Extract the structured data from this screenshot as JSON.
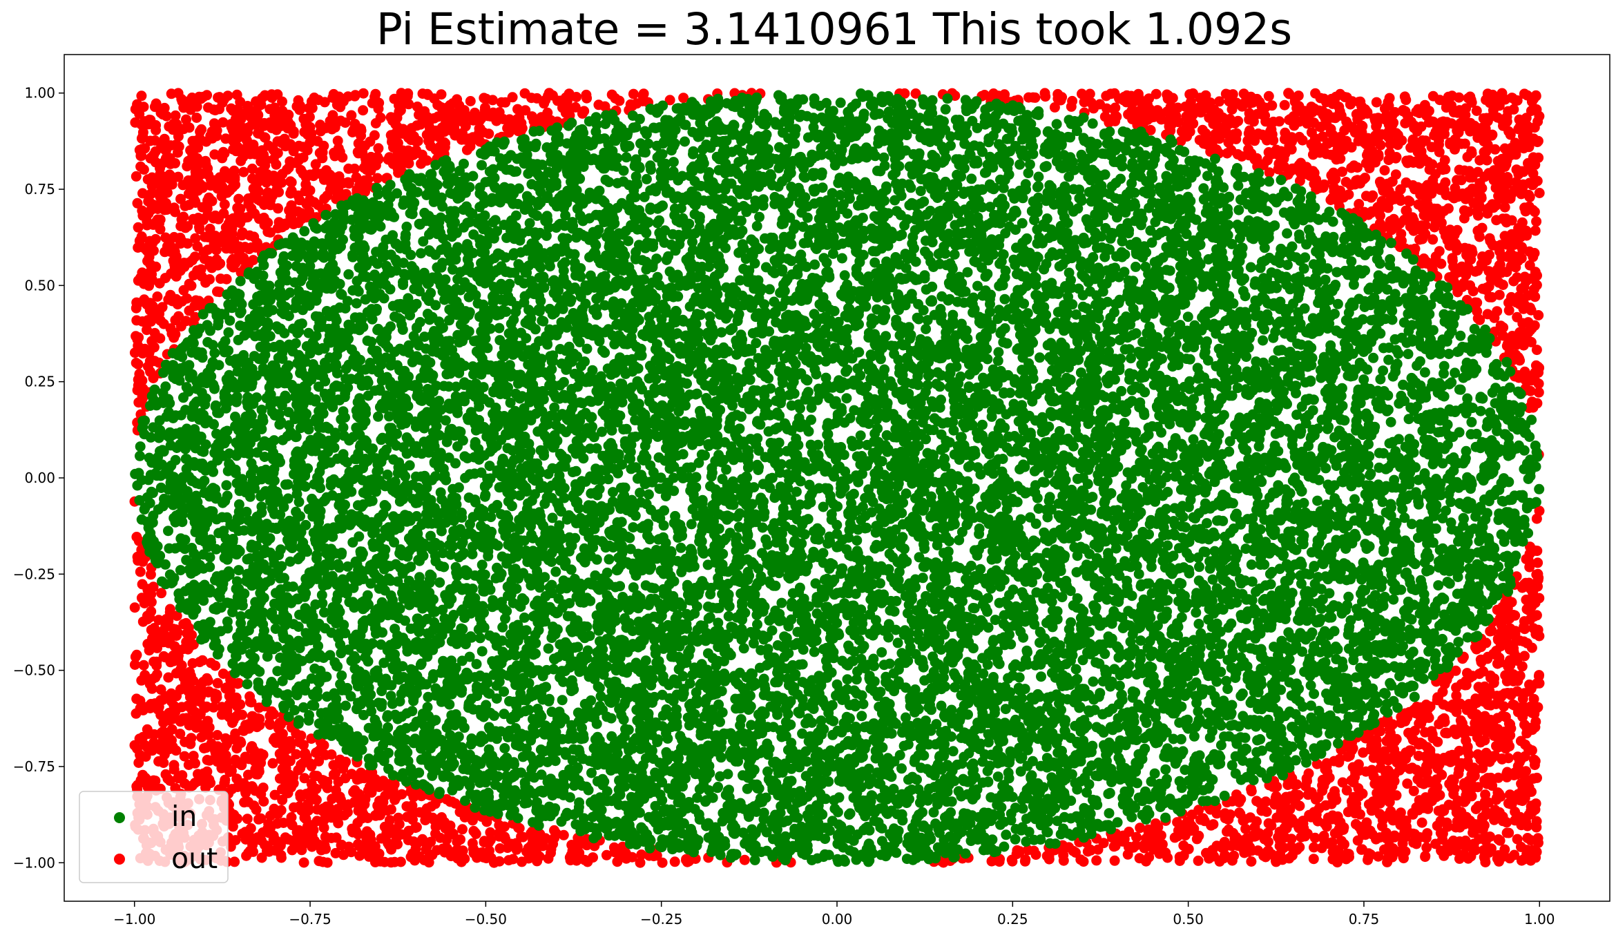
{
  "chart_data": {
    "type": "scatter",
    "title": "Pi Estimate = 3.1410961 This took 1.092s",
    "xlabel": "",
    "ylabel": "",
    "xlim": [
      -1.1,
      1.1
    ],
    "ylim": [
      -1.1,
      1.1
    ],
    "grid": false,
    "legend_placement": "lower-left",
    "x_ticks": [
      -1.0,
      -0.75,
      -0.5,
      -0.25,
      0.0,
      0.25,
      0.5,
      0.75,
      1.0
    ],
    "x_tick_labels": [
      "−1.00",
      "−0.75",
      "−0.50",
      "−0.25",
      "0.00",
      "0.25",
      "0.50",
      "0.75",
      "1.00"
    ],
    "y_ticks": [
      1.0,
      0.75,
      0.5,
      0.25,
      0.0,
      -0.25,
      -0.5,
      -0.75,
      -1.0
    ],
    "y_tick_labels": [
      "1.00",
      "0.75",
      "0.50",
      "0.25",
      "0.00",
      "−0.25",
      "−0.50",
      "−0.75",
      "−1.00"
    ],
    "series": [
      {
        "name": "in",
        "color": "#008000",
        "region": "inside unit circle: x^2 + y^2 <= 1"
      },
      {
        "name": "out",
        "color": "#ff0000",
        "region": "outside unit circle within square [-1,1] x [-1,1]"
      }
    ],
    "x_domain": [
      -1.0,
      1.0
    ],
    "y_domain": [
      -1.0,
      1.0
    ]
  }
}
